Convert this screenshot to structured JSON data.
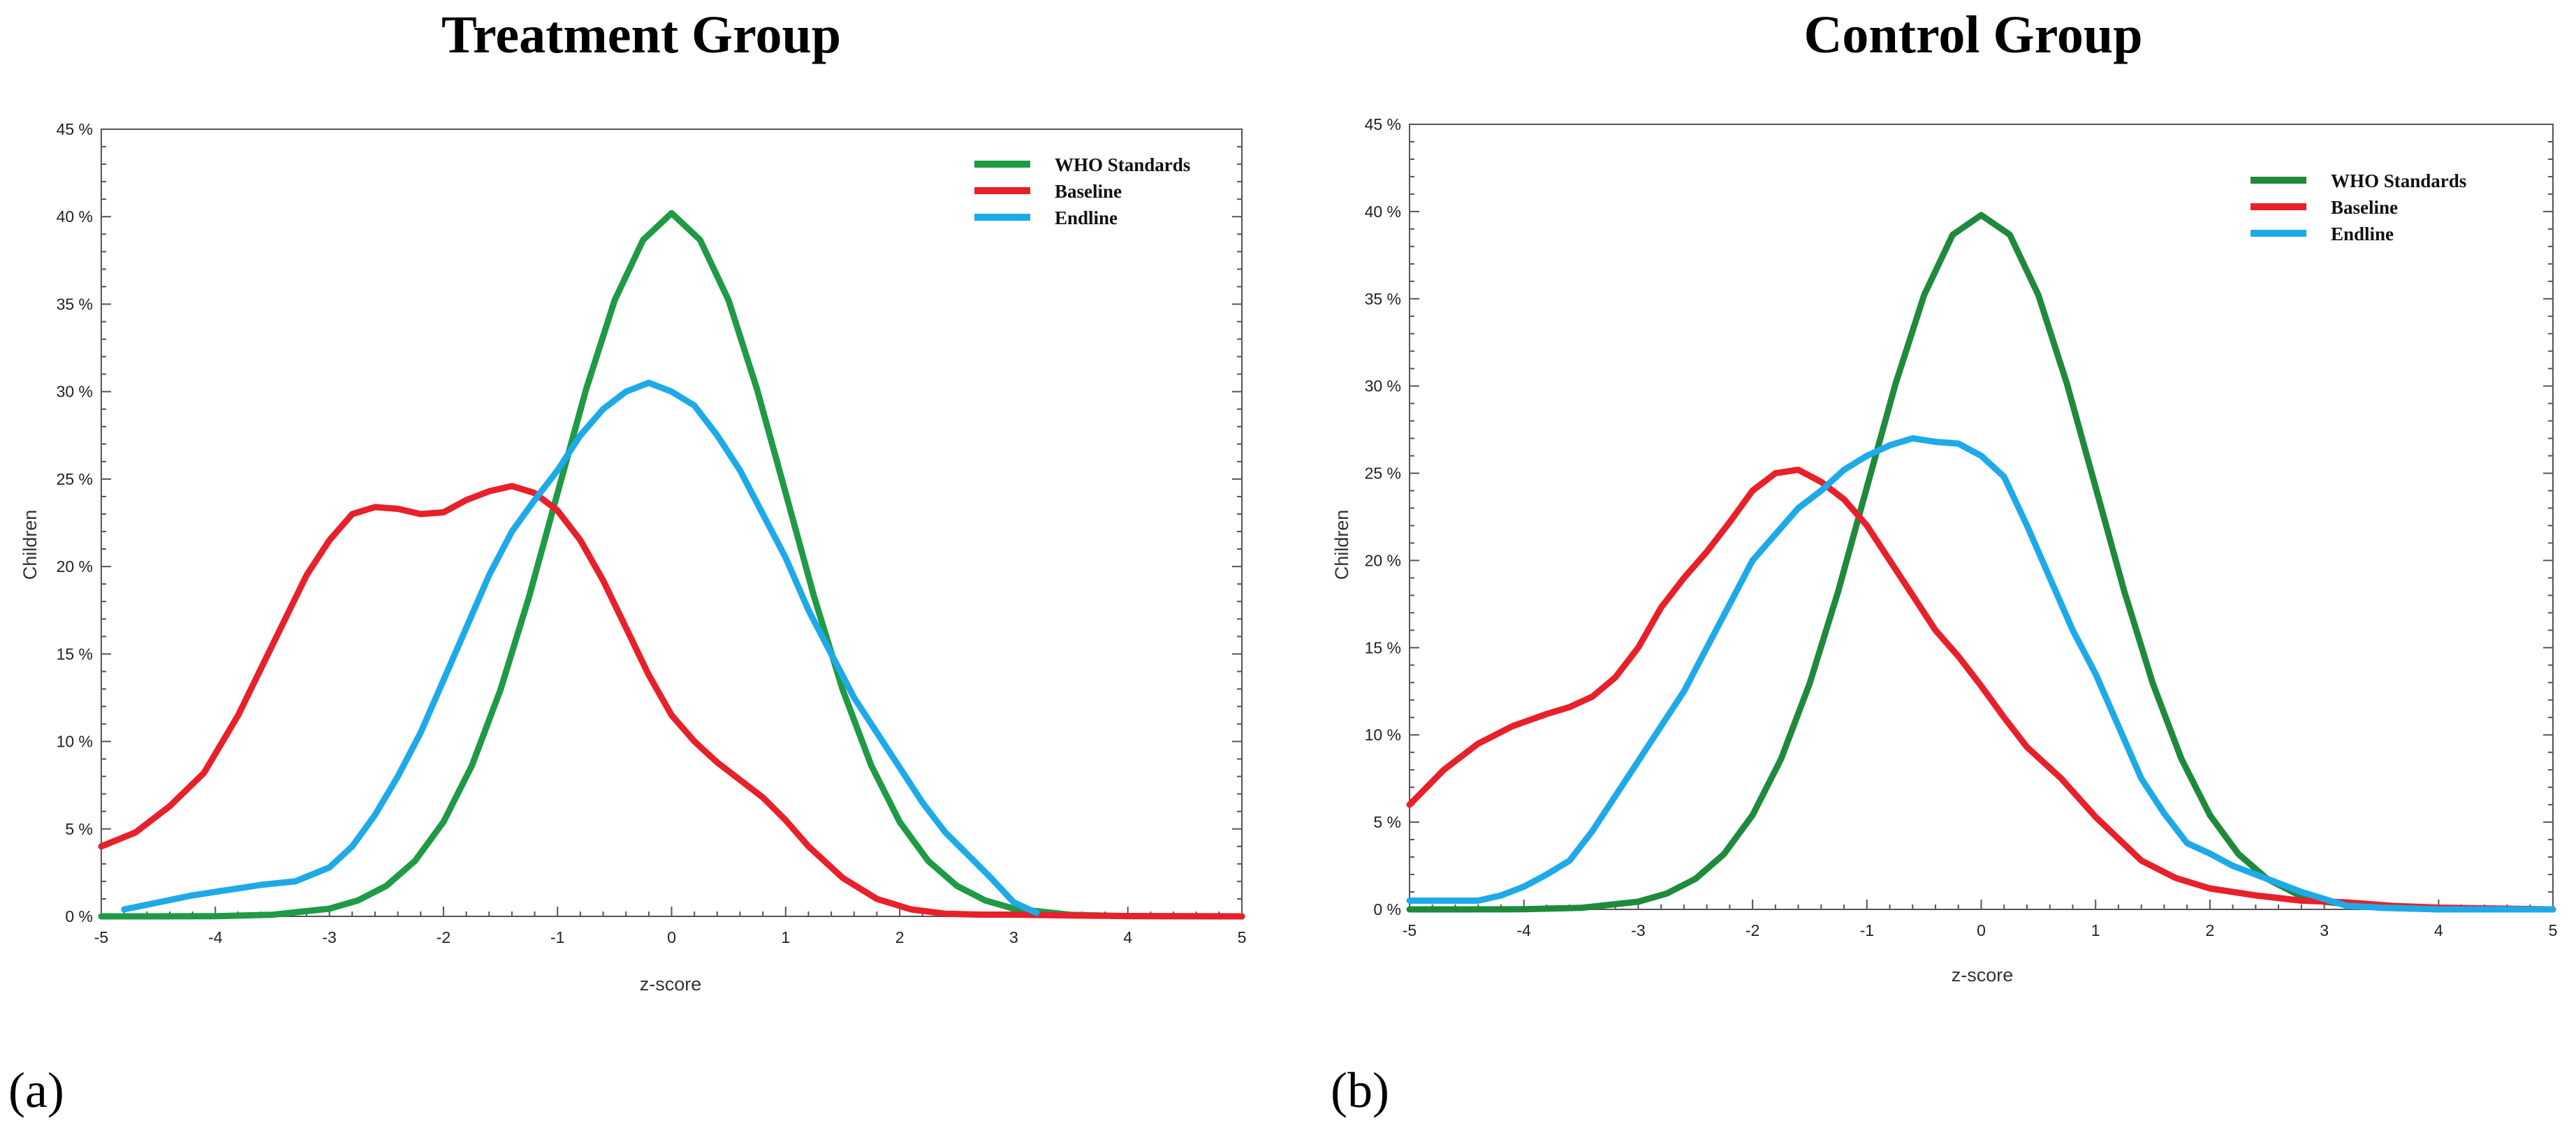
{
  "chart_data": [
    {
      "type": "line",
      "title": "Treatment Group",
      "panel_label": "(a)",
      "xlabel": "z-score",
      "ylabel": "Children",
      "xlim": [
        -5,
        5
      ],
      "ylim": [
        0,
        45
      ],
      "xticks": [
        "-5",
        "-4",
        "-3",
        "-2",
        "-1",
        "0",
        "1",
        "2",
        "3",
        "4",
        "5"
      ],
      "yticks": [
        "0 %",
        "5 %",
        "10 %",
        "15 %",
        "20 %",
        "25 %",
        "30 %",
        "35 %",
        "40 %",
        "45 %"
      ],
      "legend_position": "top-right",
      "series": [
        {
          "name": "WHO Standards",
          "color": "#1f9a45",
          "x": [
            -5,
            -4.5,
            -4,
            -3.5,
            -3,
            -2.75,
            -2.5,
            -2.25,
            -2,
            -1.75,
            -1.5,
            -1.25,
            -1,
            -0.75,
            -0.5,
            -0.25,
            0,
            0.25,
            0.5,
            0.75,
            1,
            1.25,
            1.5,
            1.75,
            2,
            2.25,
            2.5,
            2.75,
            3,
            3.5,
            4,
            5
          ],
          "y": [
            0,
            0,
            0.01,
            0.09,
            0.44,
            0.91,
            1.75,
            3.17,
            5.4,
            8.63,
            12.95,
            18.26,
            24.2,
            30.11,
            35.21,
            38.67,
            40.2,
            38.67,
            35.21,
            30.11,
            24.2,
            18.26,
            12.95,
            8.63,
            5.4,
            3.17,
            1.75,
            0.91,
            0.44,
            0.09,
            0.01,
            0
          ]
        },
        {
          "name": "Baseline",
          "color": "#e8202a",
          "x": [
            -5,
            -4.7,
            -4.4,
            -4.1,
            -3.8,
            -3.5,
            -3.2,
            -3,
            -2.8,
            -2.6,
            -2.4,
            -2.2,
            -2,
            -1.8,
            -1.6,
            -1.4,
            -1.2,
            -1,
            -0.8,
            -0.6,
            -0.4,
            -0.2,
            0,
            0.2,
            0.4,
            0.6,
            0.8,
            1,
            1.2,
            1.5,
            1.8,
            2.1,
            2.4,
            2.7,
            3,
            3.5,
            4,
            5
          ],
          "y": [
            4,
            4.8,
            6.3,
            8.2,
            11.5,
            15.5,
            19.5,
            21.5,
            23,
            23.4,
            23.3,
            23,
            23.1,
            23.8,
            24.3,
            24.6,
            24.2,
            23.2,
            21.5,
            19.2,
            16.5,
            13.8,
            11.5,
            10,
            8.8,
            7.8,
            6.8,
            5.5,
            4,
            2.2,
            1,
            0.4,
            0.15,
            0.1,
            0.1,
            0.05,
            0.02,
            0
          ]
        },
        {
          "name": "Endline",
          "color": "#1eaae8",
          "x": [
            -4.8,
            -4.5,
            -4.2,
            -3.9,
            -3.6,
            -3.3,
            -3,
            -2.8,
            -2.6,
            -2.4,
            -2.2,
            -2,
            -1.8,
            -1.6,
            -1.4,
            -1.2,
            -1,
            -0.8,
            -0.6,
            -0.4,
            -0.2,
            0,
            0.2,
            0.4,
            0.6,
            0.8,
            1,
            1.2,
            1.4,
            1.6,
            1.8,
            2,
            2.2,
            2.4,
            2.6,
            2.8,
            3,
            3.2
          ],
          "y": [
            0.4,
            0.8,
            1.2,
            1.5,
            1.8,
            2,
            2.8,
            4,
            5.8,
            8,
            10.5,
            13.5,
            16.5,
            19.5,
            22,
            23.8,
            25.5,
            27.5,
            29,
            30,
            30.5,
            30,
            29.2,
            27.5,
            25.5,
            23,
            20.5,
            17.5,
            15,
            12.5,
            10.5,
            8.5,
            6.5,
            4.8,
            3.5,
            2.2,
            0.8,
            0.2
          ]
        }
      ]
    },
    {
      "type": "line",
      "title": "Control Group",
      "panel_label": "(b)",
      "xlabel": "z-score",
      "ylabel": "Children",
      "xlim": [
        -5,
        5
      ],
      "ylim": [
        0,
        45
      ],
      "xticks": [
        "-5",
        "-4",
        "-3",
        "-2",
        "-1",
        "0",
        "1",
        "2",
        "3",
        "4",
        "5"
      ],
      "yticks": [
        "0 %",
        "5 %",
        "10 %",
        "15 %",
        "20 %",
        "25 %",
        "30 %",
        "35 %",
        "40 %",
        "45 %"
      ],
      "legend_position": "top-right",
      "series": [
        {
          "name": "WHO Standards",
          "color": "#1f8a3c",
          "x": [
            -5,
            -4.5,
            -4,
            -3.5,
            -3,
            -2.75,
            -2.5,
            -2.25,
            -2,
            -1.75,
            -1.5,
            -1.25,
            -1,
            -0.75,
            -0.5,
            -0.25,
            0,
            0.25,
            0.5,
            0.75,
            1,
            1.25,
            1.5,
            1.75,
            2,
            2.25,
            2.5,
            2.75,
            3,
            3.5,
            4,
            5
          ],
          "y": [
            0,
            0,
            0.01,
            0.09,
            0.44,
            0.91,
            1.75,
            3.17,
            5.4,
            8.63,
            12.95,
            18.26,
            24.2,
            30.11,
            35.21,
            38.67,
            39.8,
            38.67,
            35.21,
            30.11,
            24.2,
            18.26,
            12.95,
            8.63,
            5.4,
            3.17,
            1.75,
            0.91,
            0.44,
            0.09,
            0.01,
            0
          ]
        },
        {
          "name": "Baseline",
          "color": "#e8202a",
          "x": [
            -5,
            -4.7,
            -4.4,
            -4.1,
            -3.8,
            -3.6,
            -3.4,
            -3.2,
            -3,
            -2.8,
            -2.6,
            -2.4,
            -2.2,
            -2,
            -1.8,
            -1.6,
            -1.4,
            -1.2,
            -1,
            -0.8,
            -0.6,
            -0.4,
            -0.2,
            0,
            0.2,
            0.4,
            0.7,
            1,
            1.4,
            1.7,
            2,
            2.4,
            2.8,
            3.2,
            3.6,
            4,
            5
          ],
          "y": [
            6,
            8,
            9.5,
            10.5,
            11.2,
            11.6,
            12.2,
            13.3,
            15,
            17.3,
            19,
            20.5,
            22.2,
            24,
            25,
            25.2,
            24.5,
            23.5,
            22,
            20,
            18,
            16,
            14.5,
            12.8,
            11,
            9.3,
            7.5,
            5.3,
            2.8,
            1.8,
            1.2,
            0.8,
            0.5,
            0.4,
            0.2,
            0.1,
            0
          ]
        },
        {
          "name": "Endline",
          "color": "#1eaae8",
          "x": [
            -5,
            -4.8,
            -4.6,
            -4.4,
            -4.2,
            -4,
            -3.8,
            -3.6,
            -3.4,
            -3.2,
            -3,
            -2.8,
            -2.6,
            -2.4,
            -2.2,
            -2,
            -1.8,
            -1.6,
            -1.4,
            -1.2,
            -1,
            -0.8,
            -0.6,
            -0.4,
            -0.2,
            0,
            0.2,
            0.4,
            0.6,
            0.8,
            1,
            1.2,
            1.4,
            1.6,
            1.8,
            2,
            2.2,
            2.4,
            2.6,
            2.8,
            3,
            3.2,
            3.5,
            4,
            5
          ],
          "y": [
            0.5,
            0.5,
            0.5,
            0.5,
            0.8,
            1.3,
            2,
            2.8,
            4.5,
            6.5,
            8.5,
            10.5,
            12.5,
            15,
            17.5,
            20,
            21.5,
            23,
            24,
            25.2,
            26,
            26.6,
            27,
            26.8,
            26.7,
            26,
            24.8,
            22,
            19,
            16,
            13.5,
            10.5,
            7.5,
            5.5,
            3.8,
            3.2,
            2.5,
            2,
            1.5,
            1,
            0.6,
            0.2,
            0.1,
            0,
            0
          ]
        }
      ]
    }
  ]
}
